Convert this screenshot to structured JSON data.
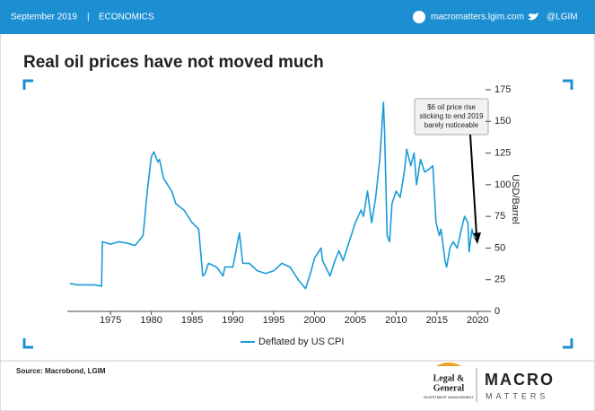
{
  "header": {
    "date": "September 2019",
    "separator": "|",
    "section": "ECONOMICS",
    "website": "macromatters.lgim.com",
    "twitter": "@LGIM"
  },
  "chart_data": {
    "type": "line",
    "title": "Real oil prices have not moved much",
    "y_label": "USD/Barrel",
    "annotation": [
      "$6 oil price rise",
      "sticking to end 2019",
      "barely noticeable"
    ],
    "x": [
      1970,
      1971,
      1972,
      1973,
      1973.9,
      1974.0,
      1975,
      1976,
      1977,
      1978,
      1978.5,
      1979,
      1979.5,
      1980,
      1980.3,
      1980.8,
      1981,
      1981.5,
      1982,
      1982.5,
      1983,
      1984,
      1985,
      1985.8,
      1986.3,
      1986.6,
      1987,
      1988,
      1988.8,
      1989,
      1990,
      1990.8,
      1991.2,
      1992,
      1993,
      1994,
      1995,
      1996,
      1997,
      1998,
      1998.9,
      1999.5,
      2000,
      2000.8,
      2001,
      2001.9,
      2002.5,
      2003,
      2003.5,
      2004,
      2004.5,
      2005,
      2005.7,
      2006,
      2006.5,
      2007,
      2007.5,
      2008,
      2008.45,
      2008.6,
      2008.9,
      2009.2,
      2009.5,
      2010,
      2010.5,
      2011,
      2011.3,
      2011.8,
      2012.2,
      2012.5,
      2013,
      2013.5,
      2014,
      2014.5,
      2014.9,
      2015.3,
      2015.5,
      2016,
      2016.2,
      2016.6,
      2017,
      2017.5,
      2018,
      2018.4,
      2018.8,
      2018.95,
      2019.3,
      2019.5,
      2019.8
    ],
    "series": [
      {
        "name": "Deflated by US CPI",
        "color": "#1a9bd7",
        "values": [
          22,
          21,
          21,
          21,
          20,
          55,
          53,
          55,
          54,
          52,
          56,
          60,
          95,
          122,
          126,
          118,
          120,
          105,
          100,
          95,
          85,
          80,
          70,
          65,
          28,
          30,
          38,
          35,
          28,
          35,
          35,
          62,
          38,
          38,
          32,
          30,
          32,
          38,
          35,
          25,
          18,
          30,
          42,
          50,
          40,
          28,
          40,
          48,
          40,
          50,
          60,
          70,
          80,
          75,
          95,
          70,
          90,
          120,
          165,
          140,
          60,
          55,
          85,
          95,
          90,
          110,
          128,
          115,
          125,
          100,
          120,
          110,
          112,
          115,
          70,
          60,
          65,
          40,
          35,
          50,
          55,
          50,
          65,
          75,
          70,
          47,
          65,
          60,
          58
        ]
      }
    ],
    "xlim": [
      1969.7,
      2021.4
    ],
    "xticks": [
      1975,
      1980,
      1985,
      1990,
      1995,
      2000,
      2005,
      2010,
      2015,
      2020
    ],
    "ylim": [
      0,
      175
    ],
    "yticks": [
      0,
      25,
      50,
      75,
      100,
      125,
      150,
      175
    ]
  },
  "footer": {
    "source": "Source: Macrobond, LGIM",
    "lg_line1": "Legal &",
    "lg_line2": "General",
    "lg_line3": "INVESTMENT MANAGEMENT",
    "macro": "MACRO",
    "matters": "MATTERS"
  }
}
